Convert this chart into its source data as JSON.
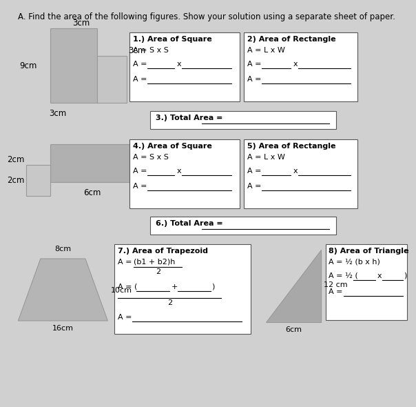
{
  "title": "A. Find the area of the following figures. Show your solution using a separate sheet of paper.",
  "bg_color": "#d0d0d0",
  "box_color": "#ffffff",
  "shape_color_dark": "#aaaaaa",
  "shape_color_light": "#c0c0c0",
  "shape_color_mid": "#b8b8b8",
  "shape1_label_9cm": "9cm",
  "shape1_label_3cm_top": "3cm",
  "shape1_label_3cm_side": "3cm",
  "shape1_label_3cm_bot": "3cm",
  "shape2_label_2cm_top": "2cm",
  "shape2_label_2cm_left": "2cm",
  "shape2_label_6cm": "6cm",
  "shape3_label_8cm": "8cm",
  "shape3_label_10cm": "10cm",
  "shape3_label_16cm": "16cm",
  "shape4_label_12cm": "12 cm",
  "shape4_label_6cm": "6cm",
  "box1_title": "1.) Area of Square",
  "box1_formula": "A = S x S",
  "box2_title": "2) Area of Rectangle",
  "box2_formula": "A = L x W",
  "box3_title": "3.) Total Area = ",
  "box4_title": "4.) Area of Square",
  "box4_formula": "A = S x S",
  "box5_title": "5) Area of Rectangle",
  "box5_formula": "A = L x W",
  "box6_title": "6.) Total Area = ",
  "box7_title": "7.) Area of Trapezoid",
  "box7_formula_over": "A = (b1 + b2)h",
  "box7_formula_denom": "2",
  "box7_fill_line": "A = (        +        )",
  "box7_fill_denom": "2",
  "box7_answer": "A = ",
  "box8_title": "8) Area of Triangle",
  "box8_formula": "A = ½ (b x h)",
  "box8_fill": "A = ½ (       x      )",
  "box8_answer": "A = "
}
